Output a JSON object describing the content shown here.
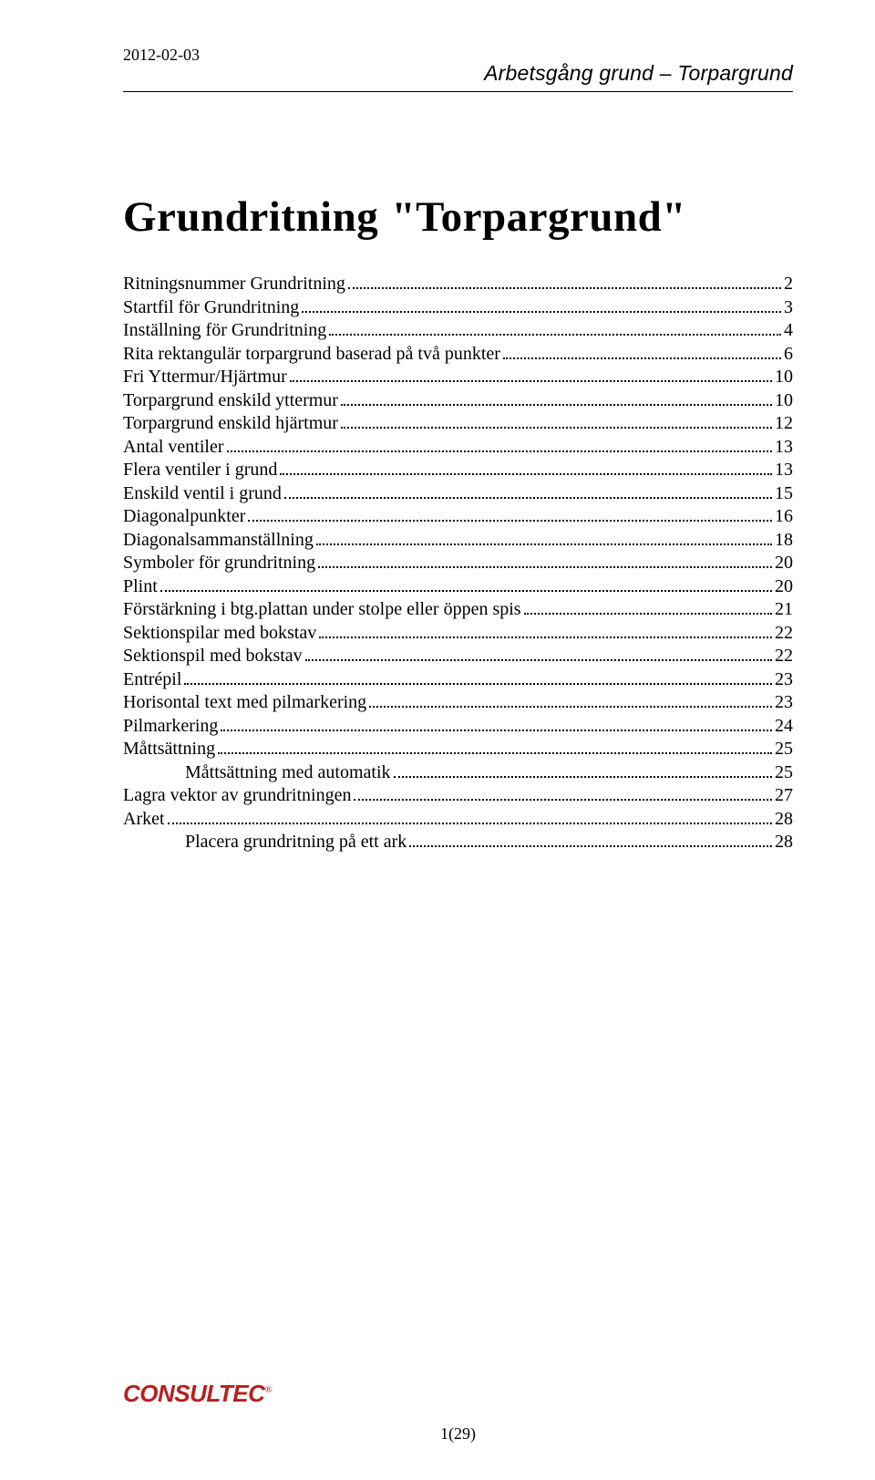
{
  "date": "2012-02-03",
  "subtitle": "Arbetsgång grund – Torpargrund",
  "title": "Grundritning \"Torpargrund\"",
  "toc": [
    {
      "label": "Ritningsnummer Grundritning",
      "page": "2",
      "indent": false
    },
    {
      "label": "Startfil för Grundritning",
      "page": "3",
      "indent": false
    },
    {
      "label": "Inställning för Grundritning",
      "page": "4",
      "indent": false
    },
    {
      "label": "Rita rektangulär torpargrund baserad på två punkter",
      "page": "6",
      "indent": false
    },
    {
      "label": "Fri Yttermur/Hjärtmur",
      "page": "10",
      "indent": false
    },
    {
      "label": "Torpargrund enskild yttermur",
      "page": "10",
      "indent": false
    },
    {
      "label": "Torpargrund enskild hjärtmur",
      "page": "12",
      "indent": false
    },
    {
      "label": "Antal ventiler",
      "page": "13",
      "indent": false
    },
    {
      "label": "Flera ventiler i grund",
      "page": "13",
      "indent": false
    },
    {
      "label": "Enskild ventil i grund",
      "page": "15",
      "indent": false
    },
    {
      "label": "Diagonalpunkter",
      "page": "16",
      "indent": false
    },
    {
      "label": "Diagonalsammanställning",
      "page": "18",
      "indent": false
    },
    {
      "label": "Symboler för grundritning",
      "page": "20",
      "indent": false
    },
    {
      "label": "Plint",
      "page": "20",
      "indent": false
    },
    {
      "label": "Förstärkning i btg.plattan under stolpe eller öppen spis",
      "page": "21",
      "indent": false
    },
    {
      "label": "Sektionspilar med bokstav",
      "page": "22",
      "indent": false
    },
    {
      "label": "Sektionspil med bokstav",
      "page": "22",
      "indent": false
    },
    {
      "label": "Entrépil",
      "page": "23",
      "indent": false
    },
    {
      "label": "Horisontal text med pilmarkering",
      "page": "23",
      "indent": false
    },
    {
      "label": "Pilmarkering",
      "page": "24",
      "indent": false
    },
    {
      "label": "Måttsättning",
      "page": "25",
      "indent": false
    },
    {
      "label": "Måttsättning med automatik",
      "page": "25",
      "indent": true
    },
    {
      "label": "Lagra vektor av grundritningen",
      "page": "27",
      "indent": false
    },
    {
      "label": "Arket",
      "page": "28",
      "indent": false
    },
    {
      "label": "Placera grundritning på ett ark",
      "page": "28",
      "indent": true
    }
  ],
  "logo_text": "CONSULTEC",
  "logo_reg": "®",
  "page_number": "1(29)",
  "colors": {
    "text": "#000000",
    "logo": "#b5201f",
    "background": "#ffffff"
  },
  "fonts": {
    "body": "Times New Roman",
    "subtitle": "Arial italic",
    "title_size_pt": 35,
    "body_size_pt": 15,
    "subtitle_size_pt": 17
  }
}
